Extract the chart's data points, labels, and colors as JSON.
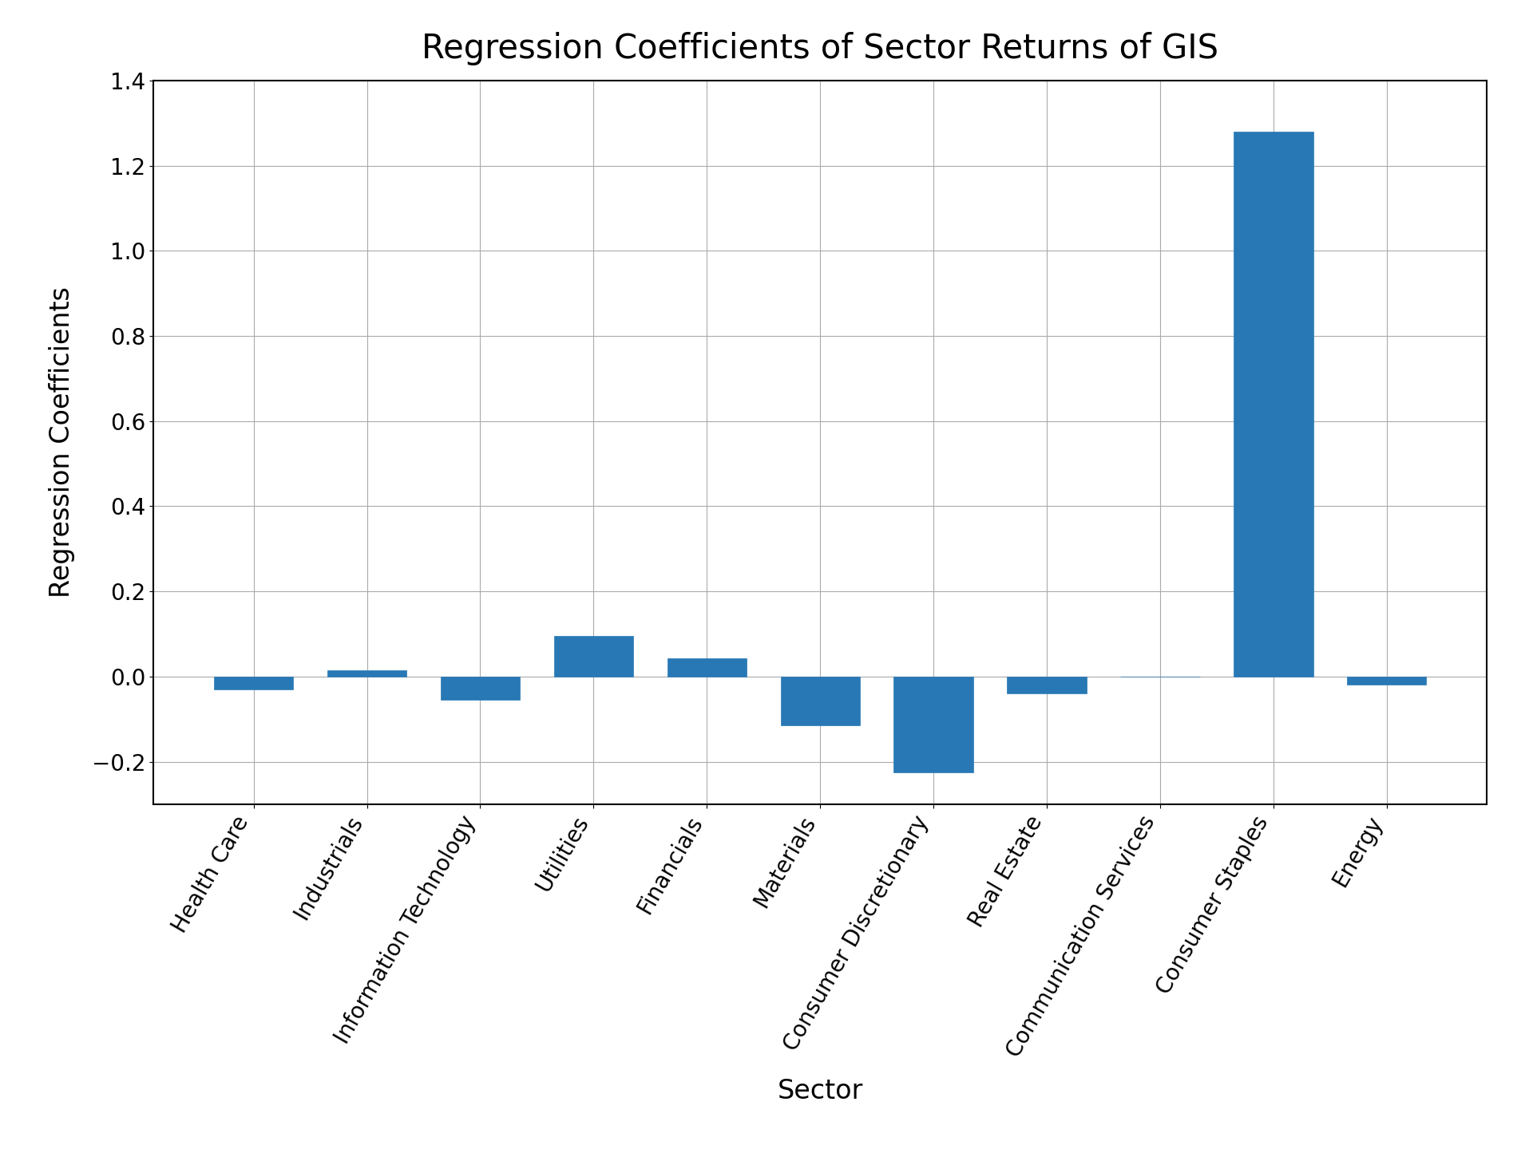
{
  "title": "Regression Coefficients of Sector Returns of GIS",
  "xlabel": "Sector",
  "ylabel": "Regression Coefficients",
  "categories": [
    "Health Care",
    "Industrials",
    "Information Technology",
    "Utilities",
    "Financials",
    "Materials",
    "Consumer Discretionary",
    "Real Estate",
    "Communication Services",
    "Consumer Staples",
    "Energy"
  ],
  "values": [
    -0.03,
    0.015,
    -0.055,
    0.095,
    0.042,
    -0.115,
    -0.225,
    -0.04,
    0.0,
    1.28,
    -0.018
  ],
  "bar_color": "#2878B5",
  "edgecolor": "#2878B5",
  "title_fontsize": 30,
  "label_fontsize": 24,
  "tick_fontsize": 20,
  "figsize": [
    19.2,
    14.4
  ],
  "dpi": 100,
  "ylim": [
    -0.3,
    1.4
  ],
  "grid": true,
  "grid_color": "#AAAAAA",
  "background_color": "#FFFFFF"
}
